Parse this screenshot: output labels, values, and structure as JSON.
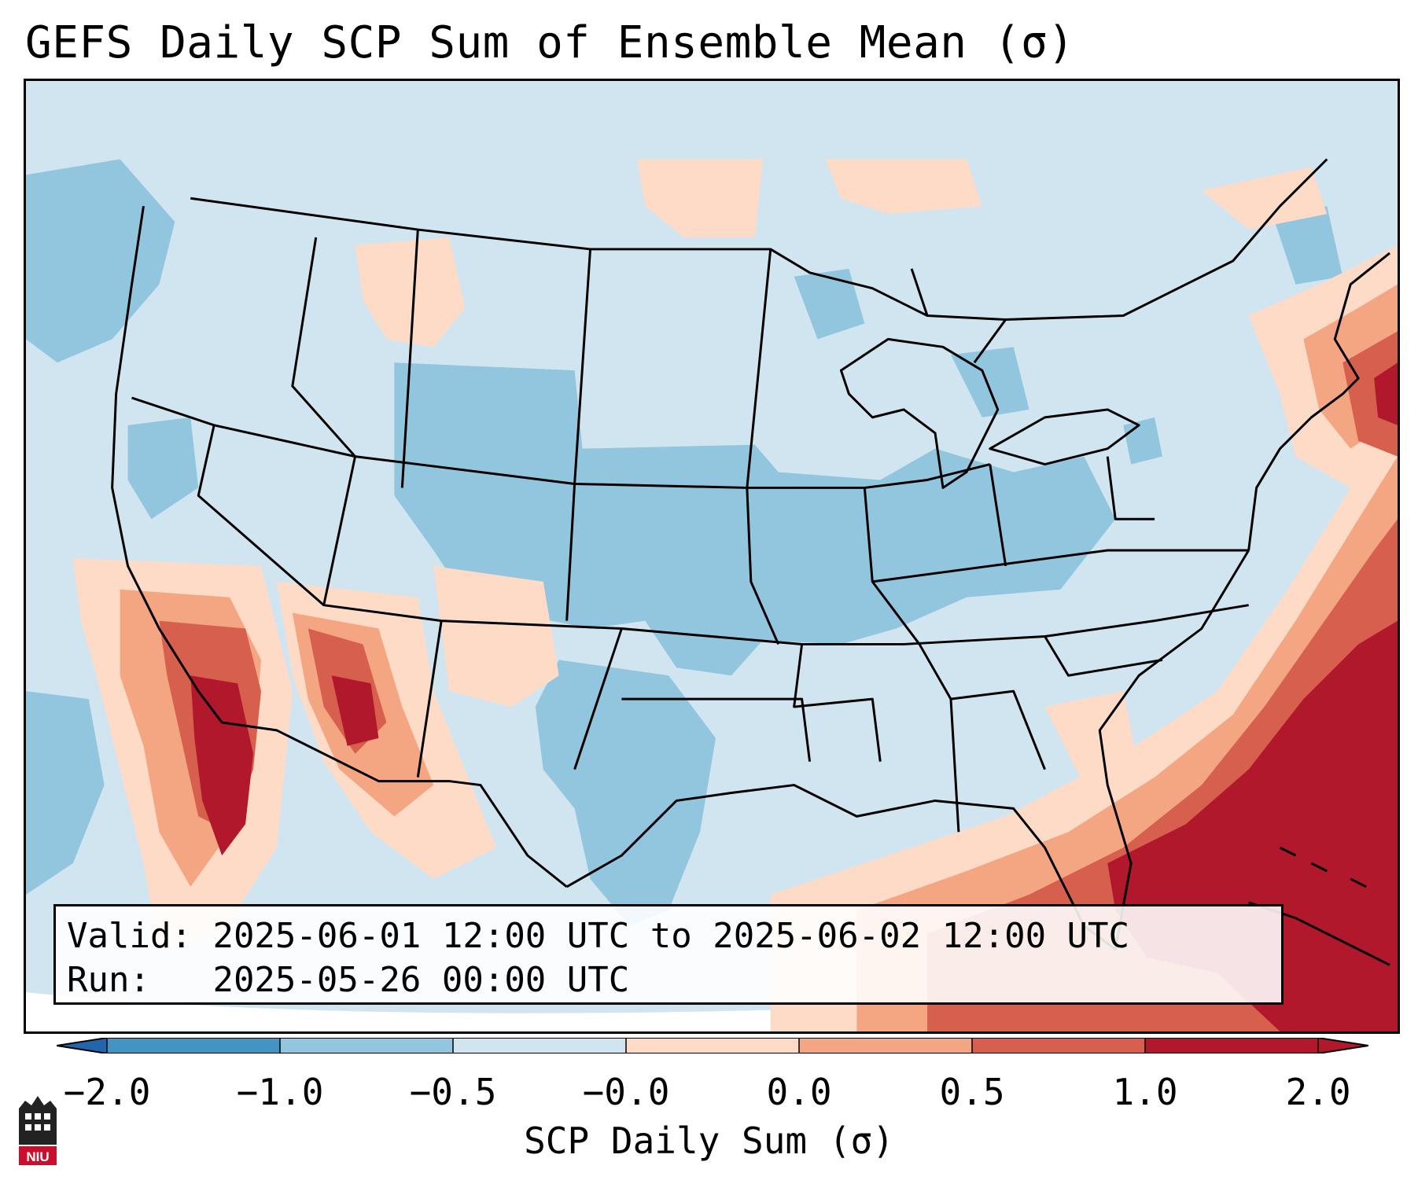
{
  "title": "GEFS Daily SCP Sum of Ensemble Mean (σ)",
  "info": {
    "valid_label": "Valid:",
    "valid_value": "2025-06-01 12:00 UTC to 2025-06-02 12:00 UTC",
    "run_label": "Run:",
    "run_value": "2025-05-26 00:00 UTC"
  },
  "colorbar": {
    "label": "SCP Daily Sum (σ)",
    "ticks": [
      "−2.0",
      "−1.0",
      "−0.5",
      "−0.0",
      "0.0",
      "0.5",
      "1.0",
      "2.0"
    ],
    "colors": [
      "#4393c3",
      "#92c5de",
      "#d1e5f0",
      "#fddbc7",
      "#f4a582",
      "#d6604d",
      "#b2182b"
    ],
    "under_color": "#2166ac",
    "over_color": "#b2182b"
  },
  "logo": {
    "text": "NIU",
    "red": "#c8102e"
  }
}
